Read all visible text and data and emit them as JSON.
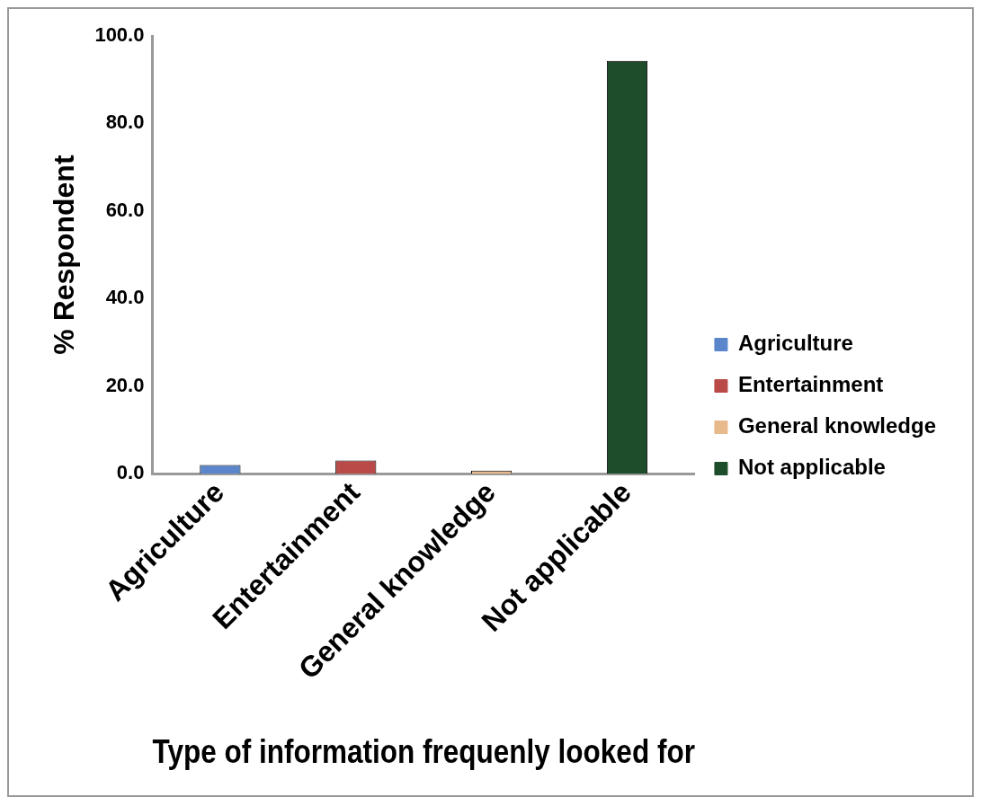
{
  "chart_data": {
    "type": "bar",
    "xlabel": "Type of information frequenly looked for",
    "ylabel": "% Respondent",
    "categories": [
      "Agriculture",
      "Entertainment",
      "General knowledge",
      "Not applicable"
    ],
    "series": [
      {
        "name": "Agriculture",
        "color": "#5b86cc",
        "values": [
          2.0,
          null,
          null,
          null
        ]
      },
      {
        "name": "Entertainment",
        "color": "#b94a48",
        "values": [
          null,
          3.0,
          null,
          null
        ]
      },
      {
        "name": "General knowledge",
        "color": "#e8b98a",
        "values": [
          null,
          null,
          0.7,
          null
        ]
      },
      {
        "name": "Not applicable",
        "color": "#1e4d2b",
        "values": [
          null,
          null,
          null,
          94.3
        ]
      }
    ],
    "ylim": [
      0,
      100
    ],
    "yticks": [
      {
        "value": 0,
        "label": "0.0"
      },
      {
        "value": 20,
        "label": "20.0"
      },
      {
        "value": 40,
        "label": "40.0"
      },
      {
        "value": 60,
        "label": "60.0"
      },
      {
        "value": 80,
        "label": "80.0"
      },
      {
        "value": 100,
        "label": "100.0"
      }
    ],
    "grid": false,
    "legend": "right"
  }
}
